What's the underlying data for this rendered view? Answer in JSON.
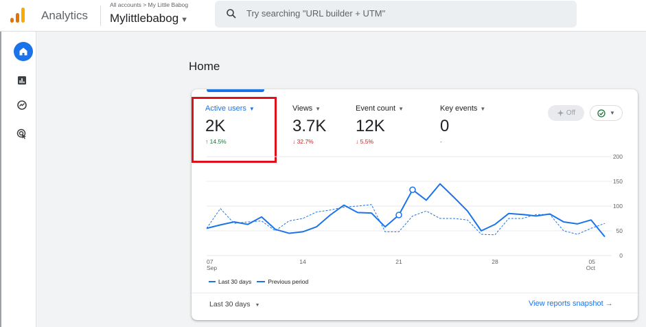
{
  "header": {
    "app_name": "Analytics",
    "breadcrumb": "All accounts > My Little Babog",
    "account_name": "Mylittlebabog",
    "search_placeholder": "Try searching \"URL builder + UTM\""
  },
  "nav": {
    "items": [
      {
        "name": "home",
        "icon": "home-icon",
        "active": true
      },
      {
        "name": "reports",
        "icon": "bar-chart-icon"
      },
      {
        "name": "explore",
        "icon": "explore-icon"
      },
      {
        "name": "advertising",
        "icon": "advertising-icon"
      }
    ]
  },
  "page": {
    "title": "Home"
  },
  "card": {
    "metrics": [
      {
        "label": "Active users",
        "value": "2K",
        "change": "14.5%",
        "direction": "up",
        "arrow": "↑"
      },
      {
        "label": "Views",
        "value": "3.7K",
        "change": "32.7%",
        "direction": "down",
        "arrow": "↓"
      },
      {
        "label": "Event count",
        "value": "12K",
        "change": "5.5%",
        "direction": "down",
        "arrow": "↓"
      },
      {
        "label": "Key events",
        "value": "0",
        "change": "-",
        "direction": "neutral",
        "arrow": ""
      }
    ],
    "off_label": "Off",
    "legend_current": "Last 30 days",
    "legend_previous": "Previous period",
    "date_range": "Last 30 days",
    "snapshot_link": "View reports snapshot →"
  },
  "colors": {
    "accent": "#1a73e8",
    "up": "#137333",
    "down": "#c5221f",
    "highlight": "#e0101a"
  },
  "chart_data": {
    "type": "line",
    "x": [
      "Sep 07",
      "Sep 08",
      "Sep 09",
      "Sep 10",
      "Sep 11",
      "Sep 12",
      "Sep 13",
      "Sep 14",
      "Sep 15",
      "Sep 16",
      "Sep 17",
      "Sep 18",
      "Sep 19",
      "Sep 20",
      "Sep 21",
      "Sep 22",
      "Sep 23",
      "Sep 24",
      "Sep 25",
      "Sep 26",
      "Sep 27",
      "Sep 28",
      "Sep 29",
      "Sep 30",
      "Oct 01",
      "Oct 02",
      "Oct 03",
      "Oct 04",
      "Oct 05",
      "Oct 06"
    ],
    "x_tick_labels": [
      {
        "index": 0,
        "line1": "07",
        "line2": "Sep"
      },
      {
        "index": 7,
        "line1": "14",
        "line2": ""
      },
      {
        "index": 14,
        "line1": "21",
        "line2": ""
      },
      {
        "index": 21,
        "line1": "28",
        "line2": ""
      },
      {
        "index": 28,
        "line1": "05",
        "line2": "Oct"
      }
    ],
    "series": [
      {
        "name": "Last 30 days",
        "style": "solid",
        "values": [
          55,
          62,
          68,
          63,
          78,
          53,
          45,
          48,
          58,
          82,
          102,
          87,
          86,
          58,
          82,
          133,
          112,
          145,
          118,
          90,
          50,
          63,
          85,
          83,
          80,
          84,
          68,
          64,
          72,
          38
        ]
      },
      {
        "name": "Previous period",
        "style": "dashed",
        "values": [
          55,
          95,
          65,
          68,
          70,
          50,
          70,
          75,
          88,
          92,
          98,
          100,
          103,
          48,
          48,
          80,
          90,
          75,
          75,
          72,
          43,
          42,
          75,
          75,
          83,
          83,
          50,
          43,
          55,
          65
        ]
      }
    ],
    "markers": [
      {
        "series": 0,
        "index": 14
      },
      {
        "series": 0,
        "index": 15
      }
    ],
    "y_ticks": [
      0,
      50,
      100,
      150,
      200
    ],
    "ylim": [
      0,
      200
    ],
    "grid": true
  }
}
